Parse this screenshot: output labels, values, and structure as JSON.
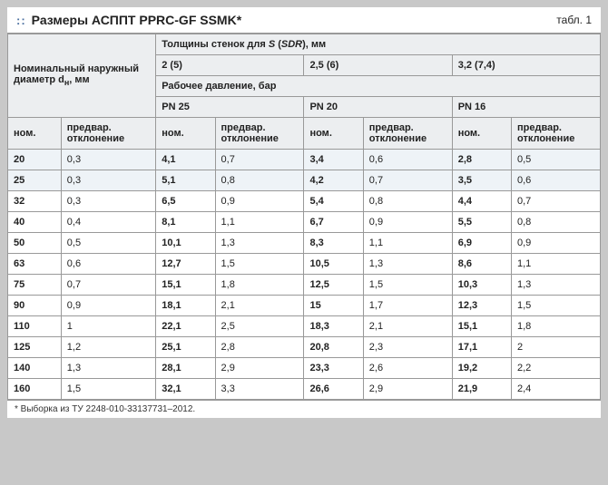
{
  "title": "Размеры АСППТ PPRC-GF SSMK*",
  "table_label": "табл. 1",
  "footnote": "* Выборка из ТУ 2248-010-33137731–2012.",
  "header": {
    "diam_label_a": "Номинальный наружный",
    "diam_label_b": "диаметр d",
    "diam_label_c": ", мм",
    "diam_sub": "н",
    "wall_label_a": "Толщины стенок для ",
    "wall_label_b": "S",
    "wall_label_c": " (",
    "wall_label_d": "SDR",
    "wall_label_e": "), мм",
    "pressure_label": "Рабочее давление, бар",
    "sdr_groups": [
      "2 (5)",
      "2,5 (6)",
      "3,2 (7,4)"
    ],
    "pn_groups": [
      "PN 25",
      "PN 20",
      "PN 16"
    ],
    "nom": "ном.",
    "dev": "предвар. отклонение"
  },
  "rows": [
    {
      "d": "20",
      "dd": "0,3",
      "a": "4,1",
      "ad": "0,7",
      "b": "3,4",
      "bd": "0,6",
      "c": "2,8",
      "cd": "0,5"
    },
    {
      "d": "25",
      "dd": "0,3",
      "a": "5,1",
      "ad": "0,8",
      "b": "4,2",
      "bd": "0,7",
      "c": "3,5",
      "cd": "0,6"
    },
    {
      "d": "32",
      "dd": "0,3",
      "a": "6,5",
      "ad": "0,9",
      "b": "5,4",
      "bd": "0,8",
      "c": "4,4",
      "cd": "0,7"
    },
    {
      "d": "40",
      "dd": "0,4",
      "a": "8,1",
      "ad": "1,1",
      "b": "6,7",
      "bd": "0,9",
      "c": "5,5",
      "cd": "0,8"
    },
    {
      "d": "50",
      "dd": "0,5",
      "a": "10,1",
      "ad": "1,3",
      "b": "8,3",
      "bd": "1,1",
      "c": "6,9",
      "cd": "0,9"
    },
    {
      "d": "63",
      "dd": "0,6",
      "a": "12,7",
      "ad": "1,5",
      "b": "10,5",
      "bd": "1,3",
      "c": "8,6",
      "cd": "1,1"
    },
    {
      "d": "75",
      "dd": "0,7",
      "a": "15,1",
      "ad": "1,8",
      "b": "12,5",
      "bd": "1,5",
      "c": "10,3",
      "cd": "1,3"
    },
    {
      "d": "90",
      "dd": "0,9",
      "a": "18,1",
      "ad": "2,1",
      "b": "15",
      "bd": "1,7",
      "c": "12,3",
      "cd": "1,5"
    },
    {
      "d": "110",
      "dd": "1",
      "a": "22,1",
      "ad": "2,5",
      "b": "18,3",
      "bd": "2,1",
      "c": "15,1",
      "cd": "1,8"
    },
    {
      "d": "125",
      "dd": "1,2",
      "a": "25,1",
      "ad": "2,8",
      "b": "20,8",
      "bd": "2,3",
      "c": "17,1",
      "cd": "2"
    },
    {
      "d": "140",
      "dd": "1,3",
      "a": "28,1",
      "ad": "2,9",
      "b": "23,3",
      "bd": "2,6",
      "c": "19,2",
      "cd": "2,2"
    },
    {
      "d": "160",
      "dd": "1,5",
      "a": "32,1",
      "ad": "3,3",
      "b": "26,6",
      "bd": "2,9",
      "c": "21,9",
      "cd": "2,4"
    }
  ],
  "colors": {
    "title_accent": "#4a6fa0",
    "header_bg": "#eceef0",
    "row_shade": "#eef3f7",
    "border": "#999999"
  }
}
